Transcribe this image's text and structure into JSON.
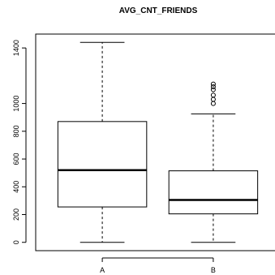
{
  "chart_data": {
    "type": "boxplot",
    "title": "AVG_CNT_FRIENDS",
    "xlabel": "",
    "ylabel": "",
    "categories": [
      "A",
      "B"
    ],
    "ylim": [
      -60,
      1500
    ],
    "yticks": [
      0,
      200,
      400,
      600,
      800,
      1000,
      1400
    ],
    "boxes": [
      {
        "category": "A",
        "min": 0,
        "q1": 255,
        "median": 520,
        "q3": 870,
        "max": 1440,
        "outliers": []
      },
      {
        "category": "B",
        "min": 0,
        "q1": 205,
        "median": 305,
        "q3": 515,
        "max": 925,
        "outliers": [
          1000,
          1030,
          1060,
          1100,
          1120,
          1140
        ]
      }
    ],
    "grid": false
  }
}
